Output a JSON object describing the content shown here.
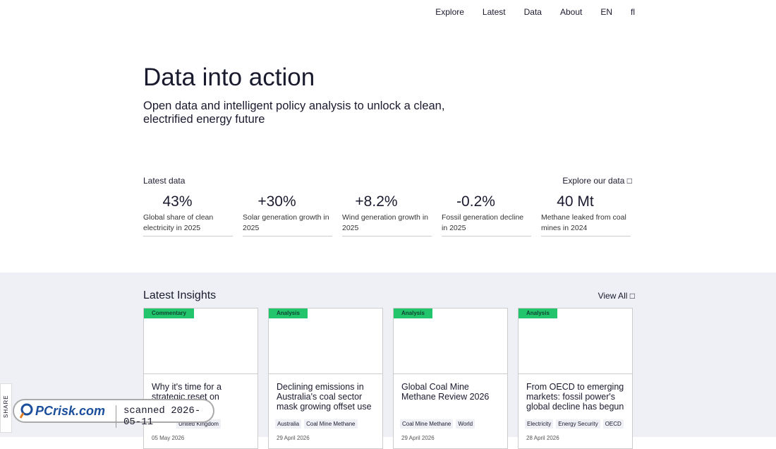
{
  "nav": [
    "Explore",
    "Latest",
    "Data",
    "About",
    "EN",
    "fl"
  ],
  "hero": {
    "title": "Data into action",
    "subtitle": "Open data and intelligent policy analysis to unlock a clean, electrified energy future"
  },
  "latest_data": {
    "heading": "Latest data",
    "link": "Explore our data",
    "stats": [
      {
        "value": "43%",
        "label": "Global share of clean electricity in 2025"
      },
      {
        "value": "+30%",
        "label": "Solar generation growth in 2025"
      },
      {
        "value": "+8.2%",
        "label": "Wind generation growth in 2025"
      },
      {
        "value": "-0.2%",
        "label": "Fossil generation decline in 2025"
      },
      {
        "value": "40 Mt",
        "label": "Methane leaked from coal mines in 2024"
      }
    ]
  },
  "insights": {
    "heading": "Latest Insights",
    "link": "View All",
    "cards": [
      {
        "badge": "Commentary",
        "title": "Why it's time for a strategic reset on negative",
        "tags": [
          "United Kingdom"
        ],
        "date": "05 May 2026"
      },
      {
        "badge": "Analysis",
        "title": "Declining emissions in Australia's coal sector mask growing offset use",
        "tags": [
          "Australia",
          "Coal Mine Methane"
        ],
        "date": "29 April 2026"
      },
      {
        "badge": "Analysis",
        "title": "Global Coal Mine Methane Review 2026",
        "tags": [
          "Coal Mine Methane",
          "World"
        ],
        "date": "29 April 2026"
      },
      {
        "badge": "Analysis",
        "title": "From OECD to emerging markets: fossil power's global decline has begun",
        "tags": [
          "Electricity",
          "Energy Security",
          "OECD"
        ],
        "date": "28 April 2026"
      }
    ]
  },
  "share": "SHARE",
  "watermark": {
    "logo": "PCrisk.com",
    "text": "scanned 2026-05-11"
  }
}
